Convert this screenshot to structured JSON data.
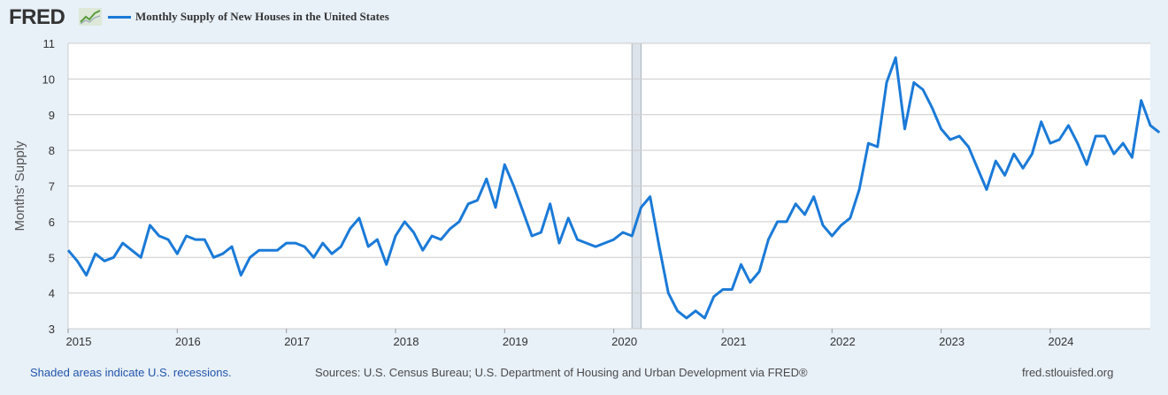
{
  "header": {
    "logo_text": "FRED",
    "logo_icon": "trend-chart-icon",
    "series_label": "Monthly Supply of New Houses in the United States"
  },
  "colors": {
    "line": "#1a7ad8",
    "recession_fill": "#dde3ea",
    "background": "#e8f0f8",
    "plot_background": "#ffffff",
    "grid": "#cccccc"
  },
  "footer": {
    "recession_note": "Shaded areas indicate U.S. recessions.",
    "sources": "Sources: U.S. Census Bureau; U.S. Department of Housing and Urban Development via FRED®",
    "site": "fred.stlouisfed.org"
  },
  "chart_data": {
    "type": "line",
    "title": "",
    "ylabel": "Months' Supply",
    "xlabel": "",
    "ylim": [
      3,
      11
    ],
    "xlim": [
      "2015-01",
      "2024-12"
    ],
    "yticks": [
      3,
      4,
      5,
      6,
      7,
      8,
      9,
      10,
      11
    ],
    "xticks": [
      "2015",
      "2016",
      "2017",
      "2018",
      "2019",
      "2020",
      "2021",
      "2022",
      "2023",
      "2024"
    ],
    "grid": true,
    "recessions": [
      {
        "start": "2020-03",
        "end": "2020-04"
      }
    ],
    "series": [
      {
        "name": "Monthly Supply of New Houses in the United States",
        "start": "2015-01",
        "frequency": "monthly",
        "values": [
          5.2,
          4.9,
          4.5,
          5.1,
          4.9,
          5.0,
          5.4,
          5.2,
          5.0,
          5.9,
          5.6,
          5.5,
          5.1,
          5.6,
          5.5,
          5.5,
          5.0,
          5.1,
          5.3,
          4.5,
          5.0,
          5.2,
          5.2,
          5.2,
          5.4,
          5.4,
          5.3,
          5.0,
          5.4,
          5.1,
          5.3,
          5.8,
          6.1,
          5.3,
          5.5,
          4.8,
          5.6,
          6.0,
          5.7,
          5.2,
          5.6,
          5.5,
          5.8,
          6.0,
          6.5,
          6.6,
          7.2,
          6.4,
          7.6,
          7.0,
          6.3,
          5.6,
          5.7,
          6.5,
          5.4,
          6.1,
          5.5,
          5.4,
          5.3,
          5.4,
          5.5,
          5.7,
          5.6,
          6.4,
          6.7,
          5.3,
          4.0,
          3.5,
          3.3,
          3.5,
          3.3,
          3.9,
          4.1,
          4.1,
          4.8,
          4.3,
          4.6,
          5.5,
          6.0,
          6.0,
          6.5,
          6.2,
          6.7,
          5.9,
          5.6,
          5.9,
          6.1,
          6.9,
          8.2,
          8.1,
          9.9,
          10.6,
          8.6,
          9.9,
          9.7,
          9.2,
          8.6,
          8.3,
          8.4,
          8.1,
          7.5,
          6.9,
          7.7,
          7.3,
          7.9,
          7.5,
          7.9,
          8.8,
          8.2,
          8.3,
          8.7,
          8.2,
          7.6,
          8.4,
          8.4,
          7.9,
          8.2,
          7.8,
          9.4,
          8.7,
          8.5
        ]
      }
    ]
  }
}
